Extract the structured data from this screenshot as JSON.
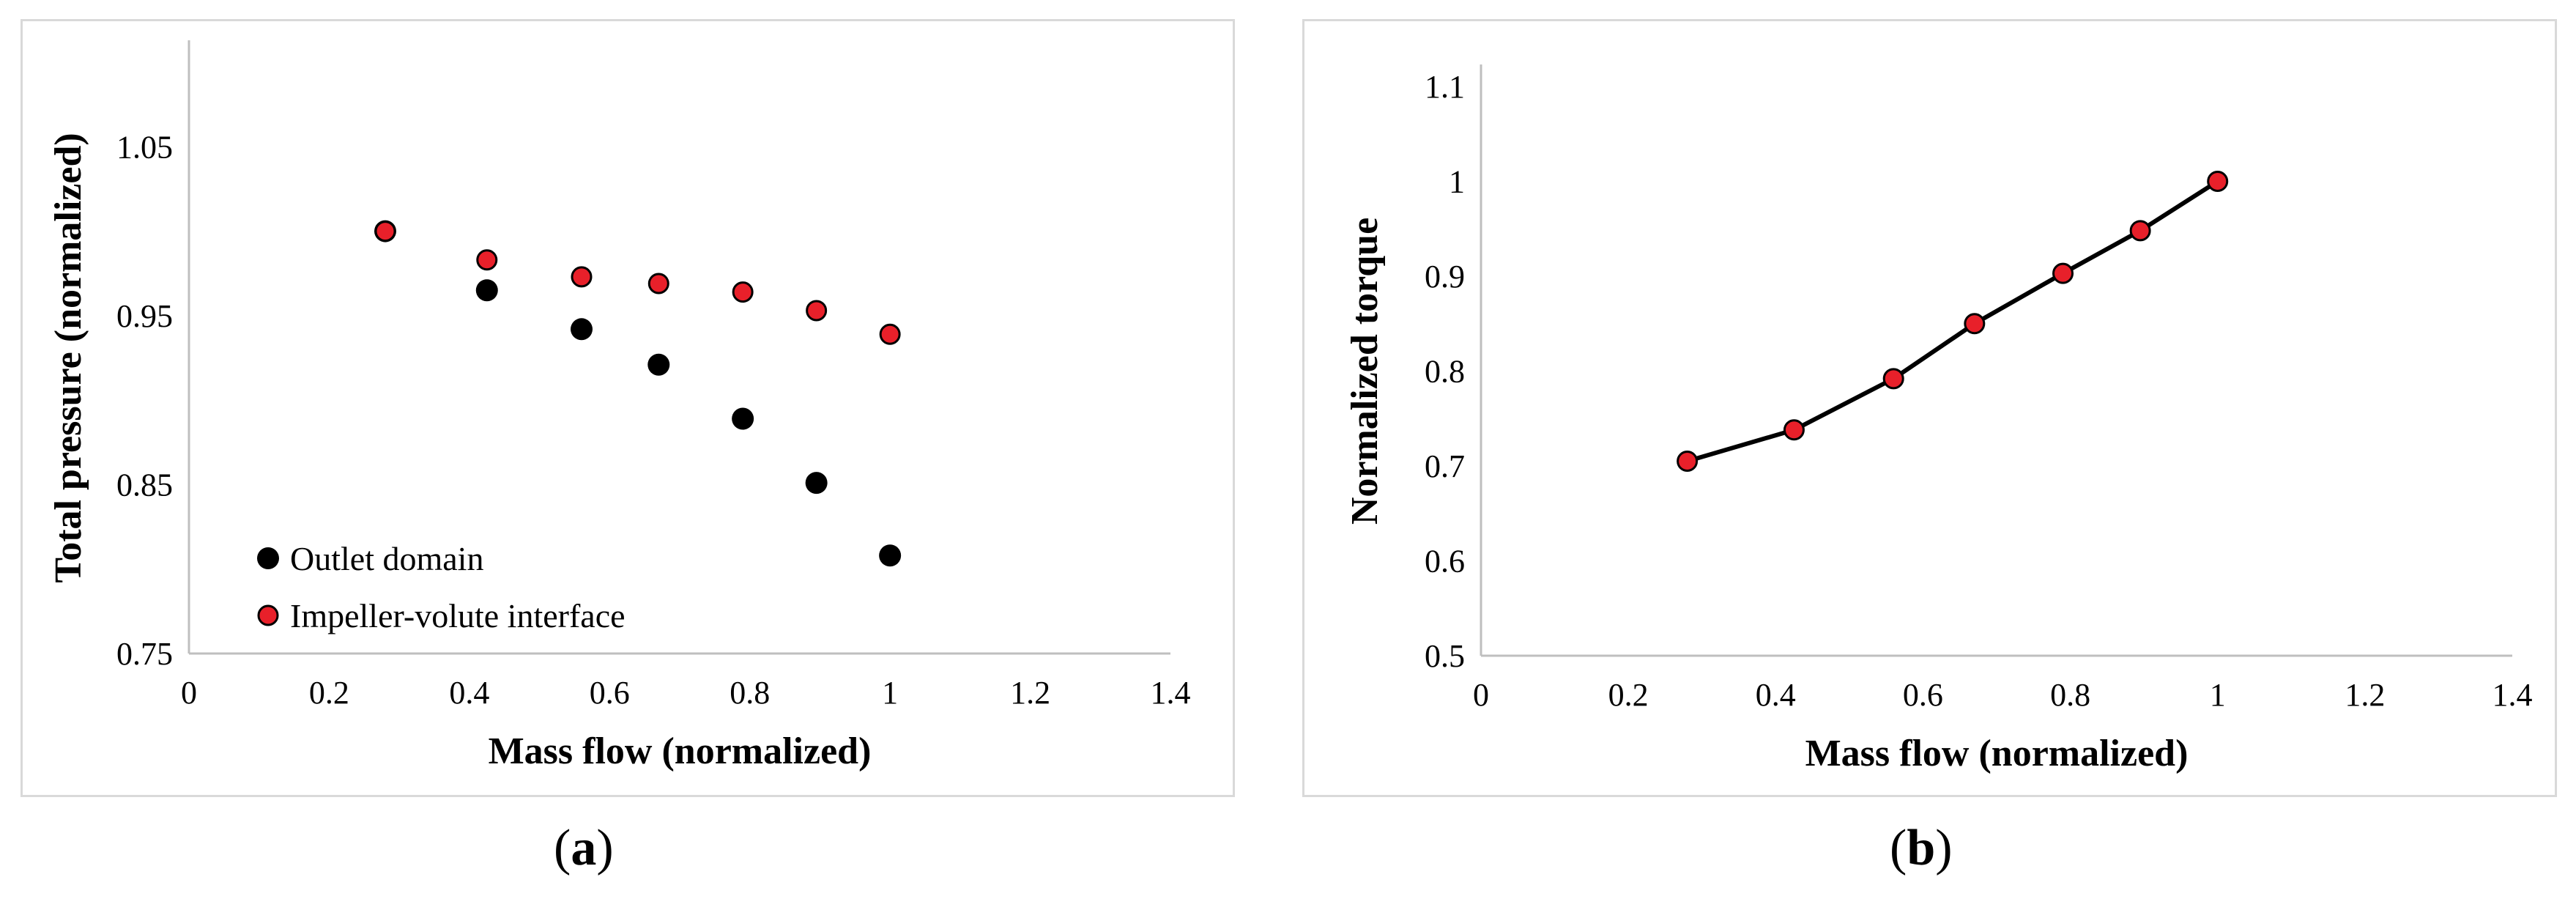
{
  "chart_data": [
    {
      "panel": "a",
      "type": "scatter",
      "title": "",
      "xlabel": "Mass flow (normalized)",
      "ylabel": "Total pressure (normalized)",
      "xlim": [
        0,
        1.4
      ],
      "ylim": [
        0.75,
        1.1
      ],
      "x_ticks": [
        "0",
        "0.2",
        "0.4",
        "0.6",
        "0.8",
        "1",
        "1.2",
        "1.4"
      ],
      "y_ticks": [
        "0.75",
        "0.85",
        "0.95",
        "1.05"
      ],
      "grid": false,
      "legend_position": "bottom-left",
      "series": [
        {
          "name": "Outlet domain",
          "color": "#000000",
          "x": [
            0.28,
            0.425,
            0.56,
            0.67,
            0.79,
            0.895,
            1.0
          ],
          "y": [
            1.0,
            0.965,
            0.942,
            0.921,
            0.889,
            0.851,
            0.808
          ]
        },
        {
          "name": "Impeller-volute interface",
          "color": "#e8202a",
          "x": [
            0.28,
            0.425,
            0.56,
            0.67,
            0.79,
            0.895,
            1.0
          ],
          "y": [
            1.0,
            0.983,
            0.973,
            0.969,
            0.964,
            0.953,
            0.939
          ]
        }
      ]
    },
    {
      "panel": "b",
      "type": "line",
      "title": "",
      "xlabel": "Mass flow (normalized)",
      "ylabel": "Normalized torque",
      "xlim": [
        0,
        1.4
      ],
      "ylim": [
        0.5,
        1.1
      ],
      "x_ticks": [
        "0",
        "0.2",
        "0.4",
        "0.6",
        "0.8",
        "1",
        "1.2",
        "1.4"
      ],
      "y_ticks": [
        "0.5",
        "0.6",
        "0.7",
        "0.8",
        "0.9",
        "1",
        "1.1"
      ],
      "grid": false,
      "series": [
        {
          "color": "#e8202a",
          "line_color": "#000000",
          "x": [
            0.28,
            0.425,
            0.56,
            0.67,
            0.79,
            0.895,
            1.0
          ],
          "y": [
            0.705,
            0.738,
            0.792,
            0.85,
            0.903,
            0.948,
            1.0
          ]
        }
      ]
    }
  ],
  "panel_labels": {
    "a_prefix": "(",
    "a_letter": "a",
    "a_suffix": ")",
    "b_prefix": "(",
    "b_letter": "b",
    "b_suffix": ")"
  }
}
